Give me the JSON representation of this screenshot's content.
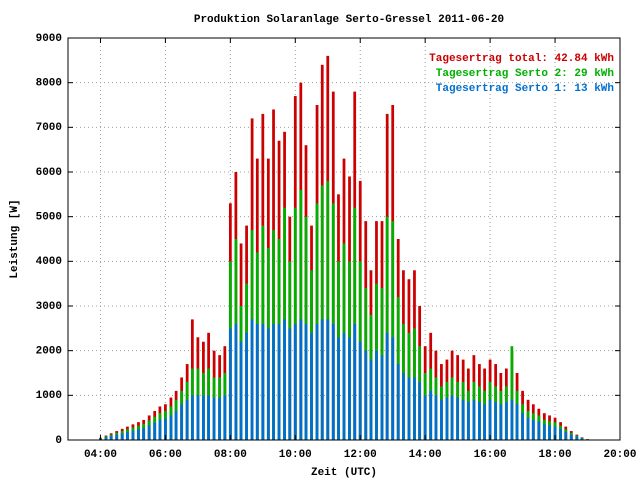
{
  "chart_data": {
    "type": "bar",
    "title": "Produktion Solaranlage Serto-Gressel 2011-06-20",
    "x_label": "Zeit (UTC)",
    "y_label": "Leistung [W]",
    "xlim": [
      3,
      20
    ],
    "ylim": [
      0,
      9000
    ],
    "xticks": [
      {
        "value": 4,
        "label": "04:00"
      },
      {
        "value": 6,
        "label": "06:00"
      },
      {
        "value": 8,
        "label": "08:00"
      },
      {
        "value": 10,
        "label": "10:00"
      },
      {
        "value": 12,
        "label": "12:00"
      },
      {
        "value": 14,
        "label": "14:00"
      },
      {
        "value": 16,
        "label": "16:00"
      },
      {
        "value": 18,
        "label": "18:00"
      },
      {
        "value": 20,
        "label": "20:00"
      }
    ],
    "yticks": [
      0,
      1000,
      2000,
      3000,
      4000,
      5000,
      6000,
      7000,
      8000,
      9000
    ],
    "grid": true,
    "legend": "top-right",
    "x": [
      4,
      4.17,
      4.33,
      4.5,
      4.67,
      4.83,
      5,
      5.17,
      5.33,
      5.5,
      5.67,
      5.83,
      6,
      6.17,
      6.33,
      6.5,
      6.67,
      6.83,
      7,
      7.17,
      7.33,
      7.5,
      7.67,
      7.83,
      8,
      8.17,
      8.33,
      8.5,
      8.67,
      8.83,
      9,
      9.17,
      9.33,
      9.5,
      9.67,
      9.83,
      10,
      10.17,
      10.33,
      10.5,
      10.67,
      10.83,
      11,
      11.17,
      11.33,
      11.5,
      11.67,
      11.83,
      12,
      12.17,
      12.33,
      12.5,
      12.67,
      12.83,
      13,
      13.17,
      13.33,
      13.5,
      13.67,
      13.83,
      14,
      14.17,
      14.33,
      14.5,
      14.67,
      14.83,
      15,
      15.17,
      15.33,
      15.5,
      15.67,
      15.83,
      16,
      16.17,
      16.33,
      16.5,
      16.67,
      16.83,
      17,
      17.17,
      17.33,
      17.5,
      17.67,
      17.83,
      18,
      18.17,
      18.33,
      18.5,
      18.67,
      18.83,
      19
    ],
    "series": [
      {
        "name": "Tagesertrag total: 42.84 kWh",
        "color": "#cc0000",
        "values": [
          50,
          100,
          150,
          200,
          250,
          300,
          350,
          400,
          450,
          550,
          650,
          750,
          800,
          950,
          1100,
          1400,
          1700,
          2700,
          2300,
          2200,
          2400,
          2000,
          1900,
          2100,
          5300,
          6000,
          4400,
          4800,
          7200,
          6300,
          7300,
          6300,
          7400,
          6700,
          6900,
          5000,
          7700,
          8000,
          6600,
          4800,
          7500,
          8400,
          8600,
          7800,
          5500,
          6300,
          5900,
          7800,
          5800,
          4900,
          3800,
          4900,
          4900,
          7300,
          7500,
          4500,
          3800,
          3600,
          3800,
          3000,
          2100,
          2400,
          2000,
          1700,
          1800,
          2000,
          1900,
          1800,
          1600,
          1900,
          1700,
          1600,
          1800,
          1700,
          1500,
          1600,
          2000,
          1500,
          1100,
          900,
          800,
          700,
          600,
          550,
          500,
          400,
          300,
          200,
          120,
          60,
          20
        ]
      },
      {
        "name": "Tagesertrag Serto 2: 29 kWh",
        "color": "#00b000",
        "values": [
          40,
          80,
          120,
          160,
          200,
          240,
          280,
          320,
          360,
          440,
          520,
          600,
          650,
          750,
          900,
          1100,
          1300,
          1600,
          1600,
          1500,
          1600,
          1400,
          1400,
          1500,
          4000,
          4500,
          3000,
          3500,
          4700,
          4200,
          4800,
          4300,
          4700,
          4500,
          5200,
          4000,
          5200,
          5600,
          5000,
          3800,
          5300,
          5700,
          5800,
          5300,
          4000,
          4400,
          4000,
          5200,
          4000,
          3400,
          2800,
          3500,
          3400,
          5000,
          4900,
          3200,
          2600,
          2400,
          2500,
          2100,
          1500,
          1600,
          1400,
          1200,
          1300,
          1400,
          1300,
          1300,
          1100,
          1300,
          1200,
          1100,
          1300,
          1200,
          1100,
          1200,
          2100,
          1100,
          800,
          650,
          600,
          550,
          450,
          420,
          400,
          320,
          240,
          160,
          100,
          50,
          15
        ]
      },
      {
        "name": "Tagesertrag Serto 1: 13 kWh",
        "color": "#0070d0",
        "values": [
          30,
          60,
          90,
          120,
          150,
          180,
          210,
          240,
          270,
          330,
          390,
          450,
          480,
          550,
          650,
          800,
          900,
          1000,
          1000,
          1000,
          1000,
          950,
          950,
          1000,
          2500,
          2600,
          2200,
          2400,
          2700,
          2600,
          2600,
          2500,
          2600,
          2600,
          2700,
          2500,
          2600,
          2700,
          2600,
          2400,
          2600,
          2700,
          2700,
          2600,
          2300,
          2400,
          2300,
          2600,
          2200,
          2000,
          1800,
          2000,
          1900,
          2400,
          2300,
          1700,
          1500,
          1400,
          1400,
          1300,
          1000,
          1100,
          1000,
          900,
          950,
          1000,
          950,
          900,
          850,
          900,
          850,
          800,
          900,
          850,
          800,
          850,
          900,
          800,
          600,
          500,
          450,
          420,
          350,
          330,
          300,
          250,
          180,
          120,
          80,
          40,
          10
        ]
      }
    ]
  }
}
